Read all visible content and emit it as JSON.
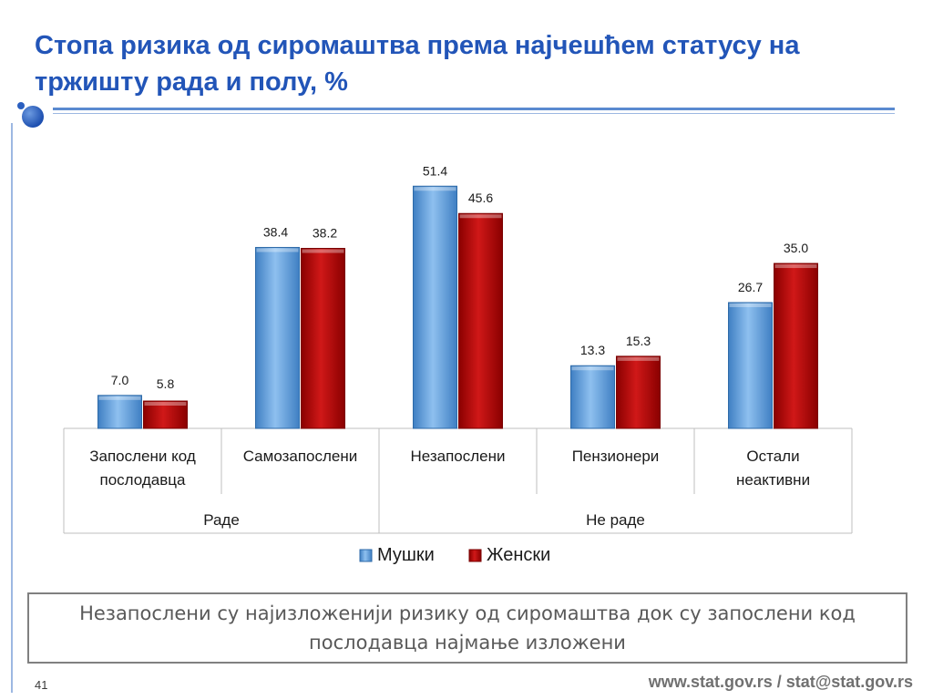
{
  "slide": {
    "title_line1": "Стопа ризика од сиромаштва према најчешћем статусу на",
    "title_line2": "тржишту рада и полу, %",
    "caption": "Незапослени су најизложенији ризику од сиромаштва док су запослени код послодавца најмање изложени",
    "page_number": "41",
    "footer": "www.stat.gov.rs / stat@stat.gov.rs"
  },
  "chart_data": {
    "type": "bar",
    "title": "Стопа ризика од сиромаштва према најчешћем статусу на тржишту рада и полу, %",
    "categories": [
      [
        "Запослени код",
        "послодавца"
      ],
      [
        "Самозапослени"
      ],
      [
        "Незапослени"
      ],
      [
        "Пензионери"
      ],
      [
        "Остали",
        "неактивни"
      ]
    ],
    "groups": [
      {
        "label": "Раде",
        "categories": [
          0,
          1
        ]
      },
      {
        "label": "Не раде",
        "categories": [
          2,
          3,
          4
        ]
      }
    ],
    "series": [
      {
        "name": "Мушки",
        "values": [
          7.0,
          38.4,
          51.4,
          13.3,
          26.7
        ],
        "color": "#5b9bd5",
        "color_dark": "#2e6aa8"
      },
      {
        "name": "Женски",
        "values": [
          5.8,
          38.2,
          45.6,
          15.3,
          35.0
        ],
        "color": "#c00000",
        "color_dark": "#7a0000"
      }
    ],
    "ylim": [
      0,
      60
    ],
    "grid": false,
    "legend": "bottom"
  }
}
